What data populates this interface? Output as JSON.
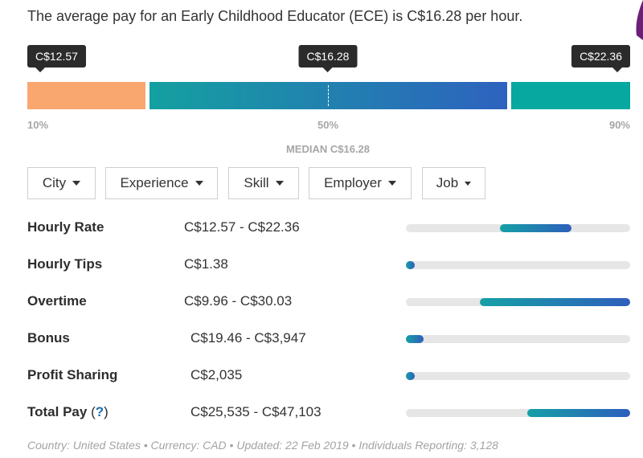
{
  "headline": "The average pay for an Early Childhood Educator (ECE) is C$16.28 per hour.",
  "distribution": {
    "low_value": "C$12.57",
    "median_value": "C$16.28",
    "high_value": "C$22.36",
    "p10_label": "10%",
    "p50_label": "50%",
    "p90_label": "90%",
    "median_caption": "MEDIAN C$16.28",
    "colors": {
      "low": "#f9a76e",
      "mid_start": "#14a0a0",
      "mid_end": "#2e62bf",
      "high": "#06a8a0"
    }
  },
  "filters": [
    {
      "label": "City"
    },
    {
      "label": "Experience"
    },
    {
      "label": "Skill"
    },
    {
      "label": "Employer"
    },
    {
      "label": "Job"
    }
  ],
  "rows": [
    {
      "label": "Hourly Rate",
      "value": "C$12.57 - C$22.36",
      "bar_start": 0.42,
      "bar_end": 0.74
    },
    {
      "label": "Hourly Tips",
      "value": "C$1.38",
      "bar_start": 0.0,
      "bar_end": 0.04
    },
    {
      "label": "Overtime",
      "value": "C$9.96 - C$30.03",
      "bar_start": 0.33,
      "bar_end": 1.0
    },
    {
      "label": "Bonus",
      "value": "C$19.46 - C$3,947",
      "bar_start": 0.0,
      "bar_end": 0.08
    },
    {
      "label": "Profit Sharing",
      "value": "C$2,035",
      "bar_start": 0.0,
      "bar_end": 0.04
    },
    {
      "label": "Total Pay",
      "help_open": "(",
      "help_mark": "?",
      "help_close": ")",
      "value": "C$25,535 - C$47,103",
      "bar_start": 0.54,
      "bar_end": 1.0
    }
  ],
  "footer": "Country: United States • Currency: CAD • Updated: 22 Feb 2019 • Individuals Reporting: 3,128"
}
